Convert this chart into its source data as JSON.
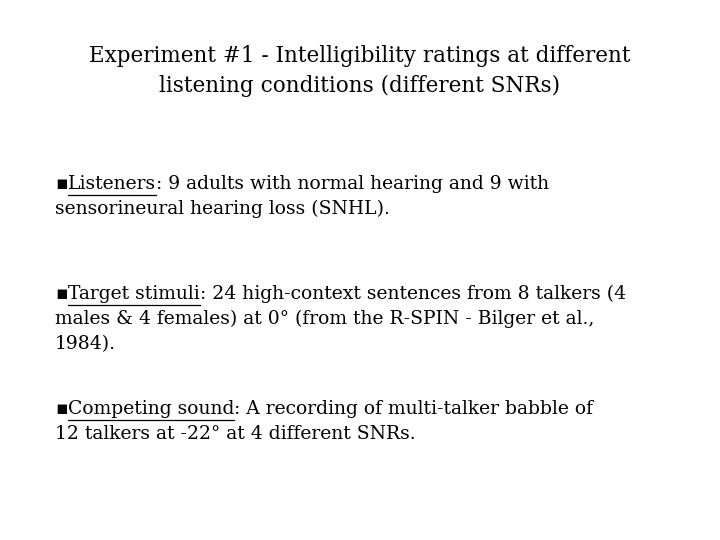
{
  "title_line1": "Experiment #1 - Intelligibility ratings at different",
  "title_line2": "listening conditions (different SNRs)",
  "bullets": [
    {
      "label": "Listeners",
      "text_after_label": ": 9 adults with normal hearing and 9 with",
      "text_line2": "sensorineural hearing loss (SNHL)."
    },
    {
      "label": "Target stimuli",
      "text_after_label": ": 24 high-context sentences from 8 talkers (4",
      "text_line2": "males & 4 females) at 0° (from the R-SPIN - Bilger et al.,",
      "text_line3": "1984)."
    },
    {
      "label": "Competing sound",
      "text_after_label": ": A recording of multi-talker babble of",
      "text_line2": "12 talkers at -22° at 4 different SNRs."
    }
  ],
  "background_color": "#ffffff",
  "text_color": "#000000",
  "title_fontsize": 15.5,
  "body_fontsize": 13.5,
  "font_family": "DejaVu Serif"
}
